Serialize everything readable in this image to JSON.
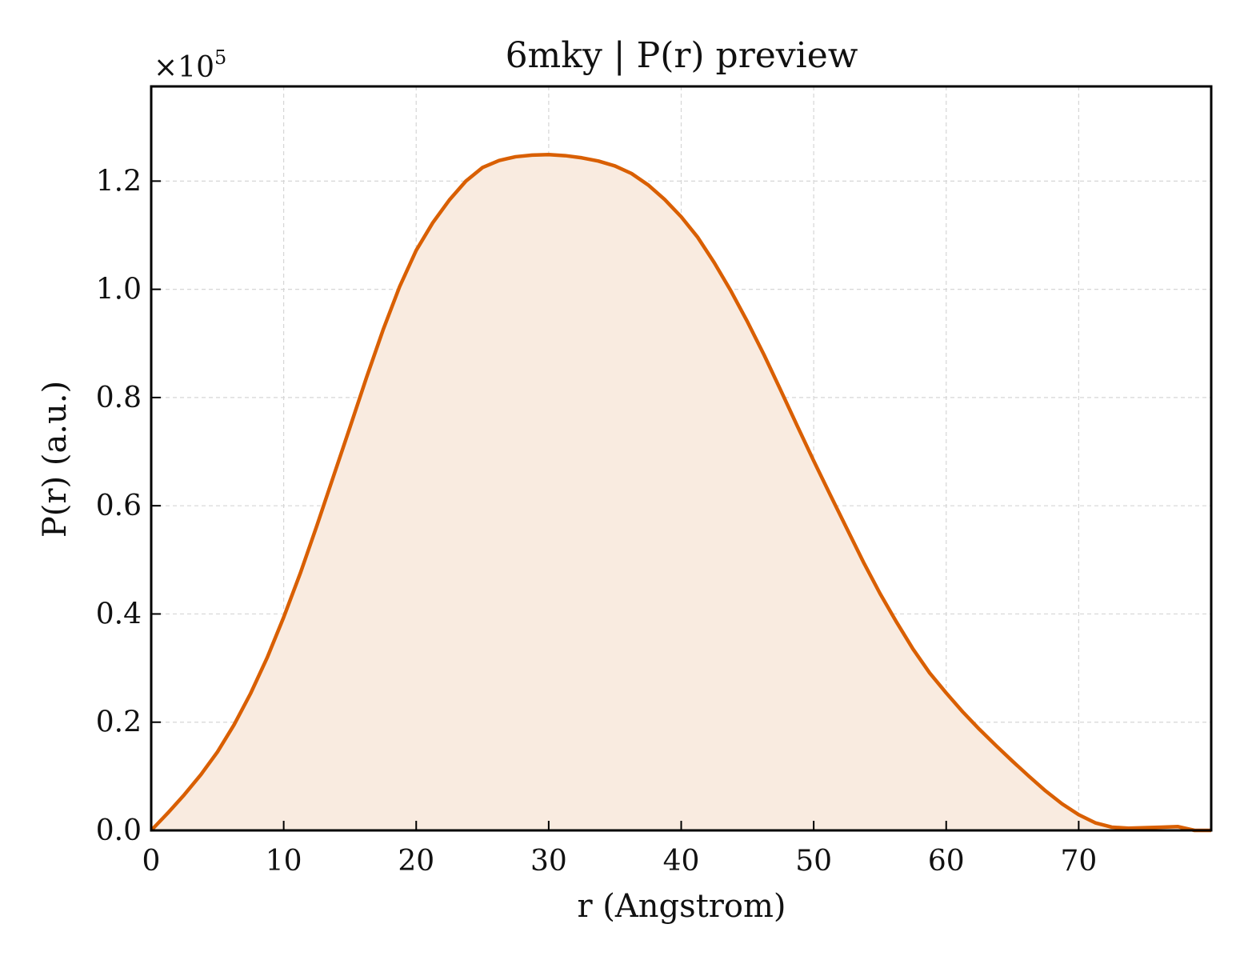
{
  "chart_data": {
    "type": "area",
    "title": "6mky | P(r) preview",
    "xlabel": "r (Angstrom)",
    "ylabel": "P(r) (a.u.)",
    "y_scale_prefix": "×10",
    "y_scale_exponent": "5",
    "xlim": [
      0,
      80
    ],
    "ylim": [
      0,
      1.375
    ],
    "xticks": [
      0,
      10,
      20,
      30,
      40,
      50,
      60,
      70
    ],
    "xtick_labels": [
      "0",
      "10",
      "20",
      "30",
      "40",
      "50",
      "60",
      "70"
    ],
    "yticks": [
      0,
      0.2,
      0.4,
      0.6,
      0.8,
      1.0,
      1.2
    ],
    "ytick_labels": [
      "0.0",
      "0.2",
      "0.4",
      "0.6",
      "0.8",
      "1.0",
      "1.2"
    ],
    "grid": true,
    "colors": {
      "line": "#d95f02",
      "fill": "#f9ebe0",
      "axes": "#000000",
      "grid": "#d6d6d6"
    },
    "series": [
      {
        "x": [
          0,
          1.25,
          2.5,
          3.75,
          5,
          6.25,
          7.5,
          8.75,
          10,
          11.25,
          12.5,
          13.75,
          15,
          16.25,
          17.5,
          18.75,
          20,
          21.25,
          22.5,
          23.75,
          25,
          26.25,
          27.5,
          28.75,
          30,
          31.25,
          32.5,
          33.75,
          35,
          36.25,
          37.5,
          38.75,
          40,
          41.25,
          42.5,
          43.75,
          45,
          46.25,
          47.5,
          48.75,
          50,
          51.25,
          52.5,
          53.75,
          55,
          56.25,
          57.5,
          58.75,
          60,
          61.25,
          62.5,
          63.75,
          65,
          66.25,
          67.5,
          68.75,
          70,
          71.25,
          72.5,
          73.75,
          75,
          76.25,
          77.5,
          78.75,
          80
        ],
        "y": [
          0.0,
          0.032,
          0.066,
          0.103,
          0.145,
          0.195,
          0.253,
          0.319,
          0.394,
          0.475,
          0.563,
          0.654,
          0.745,
          0.837,
          0.925,
          1.005,
          1.072,
          1.123,
          1.165,
          1.2,
          1.225,
          1.238,
          1.245,
          1.248,
          1.249,
          1.247,
          1.243,
          1.237,
          1.228,
          1.214,
          1.193,
          1.166,
          1.134,
          1.096,
          1.049,
          0.997,
          0.94,
          0.879,
          0.814,
          0.748,
          0.683,
          0.62,
          0.558,
          0.496,
          0.438,
          0.385,
          0.335,
          0.291,
          0.254,
          0.219,
          0.187,
          0.157,
          0.128,
          0.1,
          0.073,
          0.049,
          0.029,
          0.014,
          0.006,
          0.004,
          0.005,
          0.006,
          0.007,
          0.0,
          0.0
        ]
      }
    ]
  }
}
